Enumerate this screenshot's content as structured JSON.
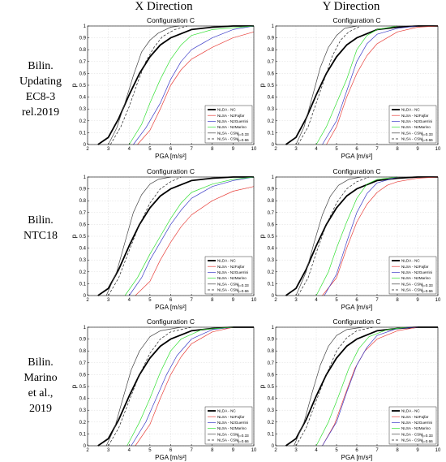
{
  "headers": {
    "x_direction": "X Direction",
    "y_direction": "Y Direction"
  },
  "row_labels": [
    [
      "Bilin.",
      "Updating",
      "EC8-3",
      "rel.2019"
    ],
    [
      "Bilin.",
      "NTC18"
    ],
    [
      "Bilin.",
      "Marino",
      "et al.,",
      "2019"
    ]
  ],
  "legend": [
    {
      "label": "NLDA - NC",
      "sub": "",
      "color": "#000000",
      "width": 1.8,
      "dash": ""
    },
    {
      "label": "NLSA - N2Fajfar",
      "sub": "",
      "color": "#e8403b",
      "width": 0.7,
      "dash": ""
    },
    {
      "label": "NLSA - N2Guerrini",
      "sub": "",
      "color": "#3d3dc8",
      "width": 0.7,
      "dash": ""
    },
    {
      "label": "NLSA - N2Marino",
      "sub": "",
      "color": "#33e033",
      "width": 0.7,
      "dash": ""
    },
    {
      "label": "NLSA - CSM",
      "sub": "η=0.33",
      "color": "#444444",
      "width": 0.7,
      "dash": ""
    },
    {
      "label": "NLSA - CSM",
      "sub": "η=0.66",
      "color": "#222222",
      "width": 0.7,
      "dash": "3,2"
    }
  ],
  "axis": {
    "xlabel": "PGA [m/s²]",
    "ylabel": "p",
    "xticks": [
      "2",
      "3",
      "4",
      "5",
      "6",
      "7",
      "8",
      "9",
      "10"
    ],
    "yticks": [
      "0",
      "0.1",
      "0.2",
      "0.3",
      "0.4",
      "0.5",
      "0.6",
      "0.7",
      "0.8",
      "0.9",
      "1"
    ]
  },
  "chart_data": [
    {
      "type": "line",
      "title": "Configuration C",
      "xlabel": "PGA [m/s²]",
      "ylabel": "p",
      "xlim": [
        2,
        10
      ],
      "ylim": [
        0,
        1
      ],
      "grid": true,
      "legend_position": "bottom-right",
      "series": [
        {
          "name": "NLDA - NC",
          "x": [
            2.5,
            3,
            3.5,
            4,
            4.5,
            5,
            5.5,
            6,
            7,
            8,
            9,
            10
          ],
          "y": [
            0.0,
            0.06,
            0.22,
            0.42,
            0.6,
            0.74,
            0.84,
            0.9,
            0.97,
            0.99,
            1.0,
            1.0
          ]
        },
        {
          "name": "NLSA - N2Fajfar",
          "x": [
            4.4,
            5,
            5.5,
            6,
            6.5,
            7,
            8,
            9,
            10
          ],
          "y": [
            0.0,
            0.12,
            0.3,
            0.5,
            0.63,
            0.72,
            0.82,
            0.9,
            0.95
          ]
        },
        {
          "name": "NLSA - N2Guerrini",
          "x": [
            4.2,
            4.8,
            5.5,
            6,
            6.5,
            7,
            8,
            9,
            10
          ],
          "y": [
            0.0,
            0.14,
            0.35,
            0.55,
            0.7,
            0.8,
            0.9,
            0.97,
            1.0
          ]
        },
        {
          "name": "NLSA - N2Marino",
          "x": [
            4.0,
            4.6,
            5,
            5.5,
            6,
            6.5,
            7,
            8,
            10
          ],
          "y": [
            0.0,
            0.17,
            0.35,
            0.55,
            0.72,
            0.84,
            0.92,
            0.97,
            1.0
          ]
        },
        {
          "name": "NLSA - CSM η=0.33",
          "x": [
            3.0,
            3.4,
            3.8,
            4.2,
            4.6,
            5,
            5.4,
            6,
            6.4
          ],
          "y": [
            0.0,
            0.14,
            0.35,
            0.58,
            0.78,
            0.88,
            0.94,
            0.99,
            1.0
          ]
        },
        {
          "name": "NLSA - CSM η=0.66",
          "x": [
            3.1,
            3.6,
            4,
            4.4,
            4.8,
            5.2,
            5.6,
            6.2,
            6.8
          ],
          "y": [
            0.0,
            0.15,
            0.32,
            0.52,
            0.7,
            0.82,
            0.91,
            0.97,
            1.0
          ]
        }
      ]
    },
    {
      "type": "line",
      "title": "Configuration C",
      "xlabel": "PGA [m/s²]",
      "ylabel": "p",
      "xlim": [
        2,
        10
      ],
      "ylim": [
        0,
        1
      ],
      "grid": true,
      "legend_position": "bottom-right",
      "series": [
        {
          "name": "NLDA - NC",
          "x": [
            2.5,
            3,
            3.5,
            4,
            4.5,
            5,
            5.5,
            6,
            7,
            8,
            9,
            10
          ],
          "y": [
            0.0,
            0.06,
            0.22,
            0.42,
            0.6,
            0.74,
            0.84,
            0.9,
            0.97,
            0.99,
            1.0,
            1.0
          ]
        },
        {
          "name": "NLSA - N2Fajfar",
          "x": [
            4.5,
            5,
            5.5,
            6,
            6.5,
            7,
            7.5,
            8,
            9,
            10
          ],
          "y": [
            0.0,
            0.15,
            0.4,
            0.6,
            0.75,
            0.85,
            0.9,
            0.95,
            0.99,
            1.0
          ]
        },
        {
          "name": "NLSA - N2Guerrini",
          "x": [
            4.3,
            5,
            5.5,
            6,
            6.5,
            7,
            8,
            9
          ],
          "y": [
            0.0,
            0.2,
            0.45,
            0.7,
            0.85,
            0.93,
            0.98,
            1.0
          ]
        },
        {
          "name": "NLSA - N2Marino",
          "x": [
            4.0,
            4.5,
            5,
            5.5,
            6,
            6.5,
            7,
            8
          ],
          "y": [
            0.0,
            0.15,
            0.35,
            0.55,
            0.8,
            0.92,
            0.97,
            1.0
          ]
        },
        {
          "name": "NLSA - CSM η=0.33",
          "x": [
            3.0,
            3.4,
            3.8,
            4.2,
            4.6,
            5,
            5.4,
            6
          ],
          "y": [
            0.0,
            0.15,
            0.4,
            0.65,
            0.82,
            0.92,
            0.98,
            1.0
          ]
        },
        {
          "name": "NLSA - CSM η=0.66",
          "x": [
            3.1,
            3.6,
            4,
            4.4,
            4.8,
            5.2,
            5.6,
            6.2
          ],
          "y": [
            0.0,
            0.15,
            0.35,
            0.55,
            0.75,
            0.88,
            0.95,
            1.0
          ]
        }
      ]
    },
    {
      "type": "line",
      "title": "Configuration C",
      "xlabel": "PGA [m/s²]",
      "ylabel": "p",
      "xlim": [
        2,
        10
      ],
      "ylim": [
        0,
        1
      ],
      "grid": true,
      "legend_position": "bottom-right",
      "series": [
        {
          "name": "NLDA - NC",
          "x": [
            2.5,
            3,
            3.5,
            4,
            4.5,
            5,
            5.5,
            6,
            7,
            8,
            9,
            10
          ],
          "y": [
            0.0,
            0.06,
            0.22,
            0.42,
            0.6,
            0.74,
            0.84,
            0.9,
            0.97,
            0.99,
            1.0,
            1.0
          ]
        },
        {
          "name": "NLSA - N2Fajfar",
          "x": [
            4.3,
            5,
            5.5,
            6,
            6.5,
            7,
            8,
            9,
            10
          ],
          "y": [
            0.0,
            0.12,
            0.3,
            0.45,
            0.58,
            0.68,
            0.8,
            0.88,
            0.92
          ]
        },
        {
          "name": "NLSA - N2Guerrini",
          "x": [
            4.0,
            4.6,
            5,
            5.5,
            6,
            6.5,
            7,
            8,
            9,
            10
          ],
          "y": [
            0.0,
            0.15,
            0.3,
            0.45,
            0.6,
            0.72,
            0.82,
            0.92,
            0.97,
            1.0
          ]
        },
        {
          "name": "NLSA - N2Marino",
          "x": [
            3.8,
            4.4,
            5,
            5.5,
            6,
            6.5,
            7,
            8,
            9,
            10
          ],
          "y": [
            0.0,
            0.15,
            0.35,
            0.5,
            0.65,
            0.78,
            0.87,
            0.94,
            0.98,
            1.0
          ]
        },
        {
          "name": "NLSA - CSM η=0.33",
          "x": [
            2.9,
            3.4,
            3.8,
            4.2,
            4.6,
            5,
            5.4,
            6
          ],
          "y": [
            0.0,
            0.2,
            0.45,
            0.7,
            0.85,
            0.94,
            0.98,
            1.0
          ]
        },
        {
          "name": "NLSA - CSM η=0.66",
          "x": [
            3.0,
            3.5,
            4,
            4.5,
            5,
            5.5,
            6,
            6.5
          ],
          "y": [
            0.0,
            0.15,
            0.38,
            0.6,
            0.78,
            0.9,
            0.96,
            1.0
          ]
        }
      ]
    },
    {
      "type": "line",
      "title": "Configuration C",
      "xlabel": "PGA [m/s²]",
      "ylabel": "p",
      "xlim": [
        2,
        10
      ],
      "ylim": [
        0,
        1
      ],
      "grid": true,
      "legend_position": "bottom-right",
      "series": [
        {
          "name": "NLDA - NC",
          "x": [
            2.5,
            3,
            3.5,
            4,
            4.5,
            5,
            5.5,
            6,
            7,
            8,
            9,
            10
          ],
          "y": [
            0.0,
            0.06,
            0.22,
            0.42,
            0.6,
            0.74,
            0.84,
            0.9,
            0.97,
            0.99,
            1.0,
            1.0
          ]
        },
        {
          "name": "NLSA - N2Fajfar",
          "x": [
            4.3,
            5,
            5.5,
            6,
            6.5,
            7,
            7.5,
            8,
            9,
            10
          ],
          "y": [
            0.0,
            0.15,
            0.4,
            0.62,
            0.77,
            0.87,
            0.93,
            0.96,
            0.99,
            1.0
          ]
        },
        {
          "name": "NLSA - N2Guerrini",
          "x": [
            4.4,
            5,
            5.5,
            6,
            6.5,
            7,
            8
          ],
          "y": [
            0.0,
            0.18,
            0.45,
            0.7,
            0.86,
            0.95,
            1.0
          ]
        },
        {
          "name": "NLSA - N2Marino",
          "x": [
            4.0,
            4.6,
            5,
            5.5,
            6,
            6.5,
            7,
            8
          ],
          "y": [
            0.0,
            0.2,
            0.4,
            0.62,
            0.82,
            0.94,
            0.98,
            1.0
          ]
        },
        {
          "name": "NLSA - CSM η=0.33",
          "x": [
            3.0,
            3.5,
            3.9,
            4.3,
            4.7,
            5.1,
            5.6,
            6.2
          ],
          "y": [
            0.0,
            0.2,
            0.45,
            0.68,
            0.84,
            0.93,
            0.98,
            1.0
          ]
        },
        {
          "name": "NLSA - CSM η=0.66",
          "x": [
            3.1,
            3.6,
            4,
            4.5,
            5,
            5.5,
            6,
            6.6
          ],
          "y": [
            0.0,
            0.15,
            0.36,
            0.6,
            0.78,
            0.9,
            0.96,
            1.0
          ]
        }
      ]
    },
    {
      "type": "line",
      "title": "Configuration C",
      "xlabel": "PGA [m/s²]",
      "ylabel": "p",
      "xlim": [
        2,
        10
      ],
      "ylim": [
        0,
        1
      ],
      "grid": true,
      "legend_position": "bottom-right",
      "series": [
        {
          "name": "NLDA - NC",
          "x": [
            2.5,
            3,
            3.5,
            4,
            4.5,
            5,
            5.5,
            6,
            7,
            8,
            9,
            10
          ],
          "y": [
            0.0,
            0.06,
            0.22,
            0.42,
            0.6,
            0.74,
            0.84,
            0.9,
            0.97,
            0.99,
            1.0,
            1.0
          ]
        },
        {
          "name": "NLSA - N2Fajfar",
          "x": [
            4.3,
            5,
            5.5,
            6,
            6.5,
            7,
            8,
            9
          ],
          "y": [
            0.0,
            0.18,
            0.4,
            0.6,
            0.75,
            0.86,
            0.96,
            1.0
          ]
        },
        {
          "name": "NLSA - N2Guerrini",
          "x": [
            4.1,
            4.8,
            5.3,
            5.8,
            6.3,
            7,
            8,
            9
          ],
          "y": [
            0.0,
            0.2,
            0.4,
            0.6,
            0.76,
            0.9,
            0.98,
            1.0
          ]
        },
        {
          "name": "NLSA - N2Marino",
          "x": [
            3.9,
            4.5,
            5,
            5.5,
            6,
            6.5,
            7.5,
            9
          ],
          "y": [
            0.0,
            0.2,
            0.4,
            0.62,
            0.8,
            0.9,
            0.98,
            1.0
          ]
        },
        {
          "name": "NLSA - CSM η=0.33",
          "x": [
            2.9,
            3.3,
            3.7,
            4.1,
            4.5,
            5,
            5.5,
            6.5
          ],
          "y": [
            0.0,
            0.15,
            0.4,
            0.64,
            0.8,
            0.92,
            0.97,
            1.0
          ]
        },
        {
          "name": "NLSA - CSM η=0.66",
          "x": [
            3.0,
            3.5,
            4,
            4.5,
            5,
            5.5,
            6,
            7
          ],
          "y": [
            0.0,
            0.15,
            0.38,
            0.6,
            0.78,
            0.9,
            0.96,
            1.0
          ]
        }
      ]
    },
    {
      "type": "line",
      "title": "Configuration C",
      "xlabel": "PGA [m/s²]",
      "ylabel": "p",
      "xlim": [
        2,
        10
      ],
      "ylim": [
        0,
        1
      ],
      "grid": true,
      "legend_position": "bottom-right",
      "series": [
        {
          "name": "NLDA - NC",
          "x": [
            2.5,
            3,
            3.5,
            4,
            4.5,
            5,
            5.5,
            6,
            7,
            8,
            9,
            10
          ],
          "y": [
            0.0,
            0.06,
            0.22,
            0.42,
            0.6,
            0.74,
            0.84,
            0.9,
            0.97,
            0.99,
            1.0,
            1.0
          ]
        },
        {
          "name": "NLSA - N2Fajfar",
          "x": [
            4.3,
            4.9,
            5.4,
            5.9,
            6.4,
            7,
            8,
            9
          ],
          "y": [
            0.0,
            0.18,
            0.42,
            0.65,
            0.8,
            0.9,
            0.97,
            1.0
          ]
        },
        {
          "name": "NLSA - N2Guerrini",
          "x": [
            4.3,
            5,
            5.5,
            6,
            6.5,
            7,
            8,
            9
          ],
          "y": [
            0.0,
            0.2,
            0.45,
            0.68,
            0.83,
            0.93,
            0.99,
            1.0
          ]
        },
        {
          "name": "NLSA - N2Marino",
          "x": [
            4.0,
            4.6,
            5.1,
            5.6,
            6.1,
            6.6,
            7.5,
            8.5
          ],
          "y": [
            0.0,
            0.2,
            0.42,
            0.65,
            0.82,
            0.92,
            0.98,
            1.0
          ]
        },
        {
          "name": "NLSA - CSM η=0.33",
          "x": [
            2.9,
            3.4,
            3.8,
            4.2,
            4.6,
            5,
            5.5,
            6.3
          ],
          "y": [
            0.0,
            0.2,
            0.45,
            0.68,
            0.84,
            0.93,
            0.98,
            1.0
          ]
        },
        {
          "name": "NLSA - CSM η=0.66",
          "x": [
            3.0,
            3.5,
            4,
            4.5,
            5,
            5.5,
            6,
            6.8
          ],
          "y": [
            0.0,
            0.15,
            0.38,
            0.6,
            0.8,
            0.91,
            0.97,
            1.0
          ]
        }
      ]
    }
  ]
}
